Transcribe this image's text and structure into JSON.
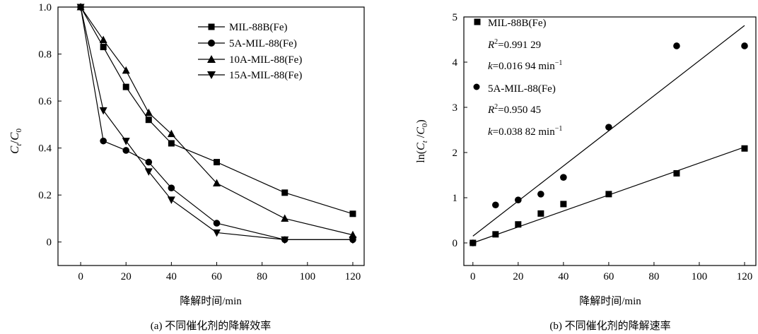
{
  "chart_data": [
    {
      "type": "line",
      "caption": "(a) 不同催化剂的降解效率",
      "xlabel": "降解时间/min",
      "ylabel_main": "C",
      "ylabel_sub1": "t",
      "ylabel_slash": "/",
      "ylabel_sub2": "0",
      "xlim": [
        -10,
        125
      ],
      "ylim": [
        -0.1,
        1.0
      ],
      "xticks": [
        0,
        20,
        40,
        60,
        80,
        100,
        120
      ],
      "yticks": [
        0,
        0.2,
        0.4,
        0.6,
        0.8,
        1.0
      ],
      "ytick_labels": [
        "0",
        "0.2",
        "0.4",
        "0.6",
        "0.8",
        "1.0"
      ],
      "legend_position": "top-center",
      "grid": false,
      "x": [
        0,
        10,
        20,
        30,
        40,
        60,
        90,
        120
      ],
      "series": [
        {
          "name": "MIL-88B(Fe)",
          "marker": "square",
          "values": [
            1.0,
            0.83,
            0.66,
            0.52,
            0.42,
            0.34,
            0.21,
            0.12
          ]
        },
        {
          "name": "5A-MIL-88(Fe)",
          "marker": "circle",
          "values": [
            1.0,
            0.43,
            0.39,
            0.34,
            0.23,
            0.08,
            0.01,
            0.01
          ]
        },
        {
          "name": "10A-MIL-88(Fe)",
          "marker": "triangle-up",
          "values": [
            1.0,
            0.86,
            0.73,
            0.55,
            0.46,
            0.25,
            0.1,
            0.03
          ]
        },
        {
          "name": "15A-MIL-88(Fe)",
          "marker": "triangle-down",
          "values": [
            1.0,
            0.56,
            0.43,
            0.3,
            0.18,
            0.04,
            0.01,
            0.01
          ]
        }
      ]
    },
    {
      "type": "scatter",
      "caption": "(b) 不同催化剂的降解速率",
      "xlabel": "降解时间/min",
      "ylabel_pre": "ln(",
      "ylabel_c": "C",
      "ylabel_t": "t",
      "ylabel_mid": " /",
      "ylabel_c2": "C",
      "ylabel_0": "0",
      "ylabel_post": ")",
      "xlim": [
        -4,
        125
      ],
      "ylim": [
        -0.5,
        5
      ],
      "xticks": [
        0,
        20,
        40,
        60,
        80,
        100,
        120
      ],
      "yticks": [
        0,
        1,
        2,
        3,
        4,
        5
      ],
      "grid": false,
      "legend_position": "top-left",
      "x": [
        0,
        10,
        20,
        30,
        40,
        60,
        90,
        120
      ],
      "series": [
        {
          "name": "MIL-88B(Fe)",
          "marker": "square",
          "values": [
            0.0,
            0.19,
            0.41,
            0.65,
            0.86,
            1.08,
            1.54,
            2.09
          ],
          "fit": {
            "x": [
              0,
              120
            ],
            "y": [
              0.0,
              2.12
            ]
          },
          "r2_label": "R",
          "r2_sup": "2",
          "r2_value": "=0.991 29",
          "k_label": "k",
          "k_value": "=0.016 94 min",
          "k_sup": "−1"
        },
        {
          "name": "5A-MIL-88(Fe)",
          "marker": "circle",
          "values": [
            0.0,
            0.84,
            0.95,
            1.08,
            1.45,
            2.56,
            4.36,
            4.36
          ],
          "fit": {
            "x": [
              0,
              120
            ],
            "y": [
              0.15,
              4.81
            ]
          },
          "r2_label": "R",
          "r2_sup": "2",
          "r2_value": "=0.950 45",
          "k_label": "k",
          "k_value": "=0.038 82 min",
          "k_sup": "−1"
        }
      ]
    }
  ]
}
